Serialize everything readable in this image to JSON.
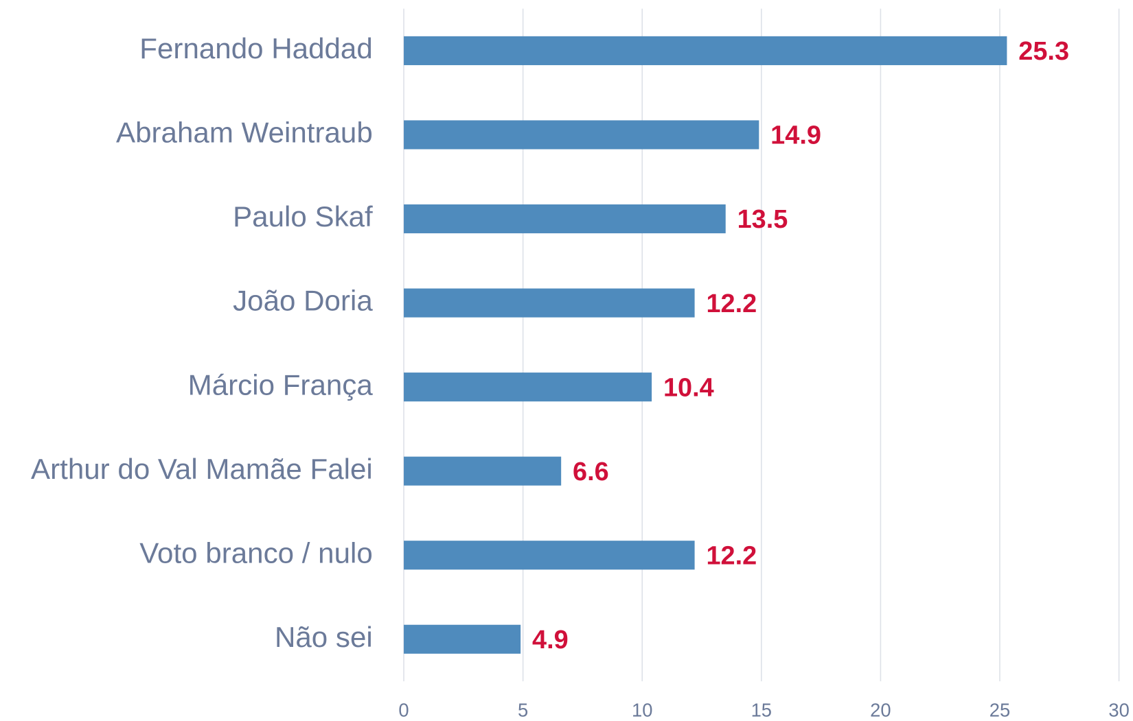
{
  "chart_data": {
    "type": "bar",
    "orientation": "horizontal",
    "categories": [
      "Fernando Haddad",
      "Abraham Weintraub",
      "Paulo Skaf",
      "João Doria",
      "Márcio França",
      "Arthur do Val Mamãe Falei",
      "Voto branco / nulo",
      "Não sei"
    ],
    "values": [
      25.3,
      14.9,
      13.5,
      12.2,
      10.4,
      6.6,
      12.2,
      4.9
    ],
    "color": "#4f8bbd",
    "label_color": "#d0103a",
    "xlim": [
      0,
      30
    ],
    "xticks": [
      0,
      5,
      10,
      15,
      20,
      25,
      30
    ],
    "grid": true
  }
}
